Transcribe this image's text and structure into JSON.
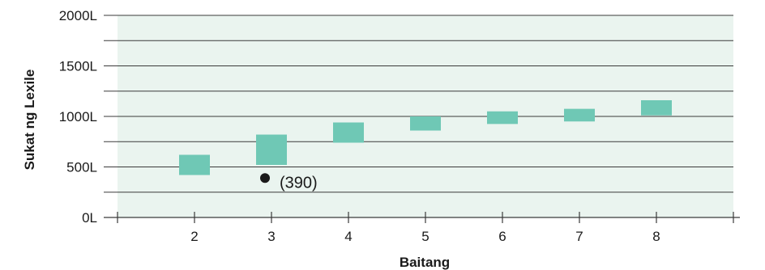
{
  "chart_data": {
    "type": "bar",
    "xlabel": "Baitang",
    "ylabel": "Sukat ng Lexile",
    "x_ticks": [
      "2",
      "3",
      "4",
      "5",
      "6",
      "7",
      "8"
    ],
    "y_ticks": [
      "0L",
      "500L",
      "1000L",
      "1500L",
      "2000L"
    ],
    "ylim": [
      0,
      2000
    ],
    "xlim": [
      1,
      9
    ],
    "grid": true,
    "colors": {
      "bar": "#6fc8b5",
      "plot_bg": "#eaf4ef",
      "grid": "#3a3a3a",
      "point": "#1a1a1a"
    },
    "series": [
      {
        "ranges": [
          {
            "x": 2,
            "low": 420,
            "high": 620
          },
          {
            "x": 3,
            "low": 520,
            "high": 820
          },
          {
            "x": 4,
            "low": 740,
            "high": 940
          },
          {
            "x": 5,
            "low": 860,
            "high": 1000
          },
          {
            "x": 6,
            "low": 925,
            "high": 1050
          },
          {
            "x": 7,
            "low": 950,
            "high": 1075
          },
          {
            "x": 8,
            "low": 1010,
            "high": 1160
          }
        ]
      }
    ],
    "point": {
      "x": 3,
      "y": 390,
      "label": "(390)"
    }
  }
}
